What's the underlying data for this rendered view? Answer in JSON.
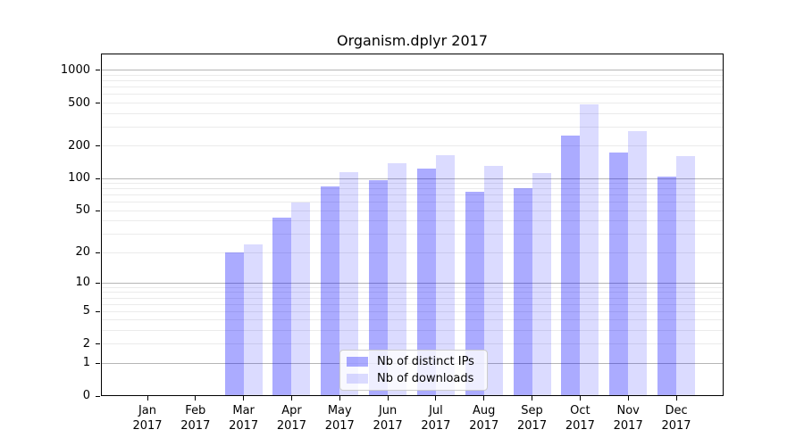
{
  "title": "Organism.dplyr 2017",
  "legend": {
    "items": [
      {
        "label": "Nb of distinct IPs",
        "series": "ips"
      },
      {
        "label": "Nb of downloads",
        "series": "downloads"
      }
    ]
  },
  "colors": {
    "ips_bar_composited": "#aaaaf8",
    "downloads_bar_composited": "#dbdbf9",
    "bar_base": "#0000ff",
    "ips_alpha": 0.33,
    "downloads_alpha": 0.14,
    "major_gridline": "#b5b5b5",
    "minor_gridline": "#ebebeb",
    "axis": "#000000",
    "background": "#ffffff"
  },
  "chart_data": {
    "type": "bar",
    "title": "Organism.dplyr 2017",
    "categories": [
      "Jan 2017",
      "Feb 2017",
      "Mar 2017",
      "Apr 2017",
      "May 2017",
      "Jun 2017",
      "Jul 2017",
      "Aug 2017",
      "Sep 2017",
      "Oct 2017",
      "Nov 2017",
      "Dec 2017"
    ],
    "series": [
      {
        "name": "Nb of distinct IPs",
        "values": [
          0,
          0,
          20,
          43,
          84,
          97,
          124,
          75,
          82,
          252,
          174,
          104
        ]
      },
      {
        "name": "Nb of downloads",
        "values": [
          0,
          0,
          24,
          60,
          115,
          140,
          165,
          131,
          113,
          489,
          276,
          163
        ]
      }
    ],
    "xlabel": "",
    "ylabel": "",
    "yscale": "log10(value+1)",
    "y_tick_values": [
      0,
      1,
      2,
      5,
      10,
      20,
      50,
      100,
      200,
      500,
      1000
    ],
    "y_minor_grid_values": [
      2,
      3,
      4,
      5,
      6,
      7,
      8,
      9,
      20,
      30,
      40,
      50,
      60,
      70,
      80,
      90,
      200,
      300,
      400,
      500,
      600,
      700,
      800,
      900
    ],
    "y_major_grid_values": [
      1,
      10,
      100,
      1000
    ],
    "ylim": [
      0,
      1430
    ],
    "grid": true,
    "legend_position": "lower center"
  }
}
